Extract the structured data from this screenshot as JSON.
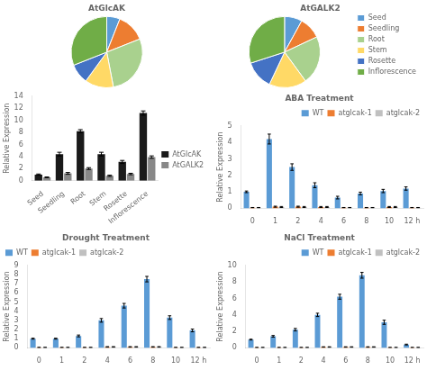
{
  "chart_data": [
    {
      "type": "pie",
      "title": "AtGlcAK",
      "categories": [
        "Seed",
        "Seedling",
        "Root",
        "Stem",
        "Rosette",
        "Inflorescence"
      ],
      "values": [
        6,
        13,
        28,
        13,
        9,
        31
      ],
      "colors": [
        "#5b9bd5",
        "#ed7d31",
        "#a9d18e",
        "#ffd966",
        "#4472c4",
        "#70ad47"
      ]
    },
    {
      "type": "pie",
      "title": "AtGALK2",
      "categories": [
        "Seed",
        "Seedling",
        "Root",
        "Stem",
        "Rosette",
        "Inflorescence"
      ],
      "values": [
        8,
        10,
        22,
        17,
        13,
        30
      ],
      "colors": [
        "#5b9bd5",
        "#ed7d31",
        "#a9d18e",
        "#ffd966",
        "#4472c4",
        "#70ad47"
      ],
      "legend": "center right"
    },
    {
      "type": "bar",
      "y_label": "Relative Expression",
      "categories": [
        "Seed",
        "Seedling",
        "Root",
        "Stem",
        "Rosette",
        "Inflorescence"
      ],
      "series": [
        {
          "name": "AtGlcAK",
          "color": "#1a1a1a",
          "values": [
            1.0,
            4.4,
            8.2,
            4.4,
            3.1,
            11.2
          ],
          "errors": [
            0.1,
            0.3,
            0.25,
            0.3,
            0.25,
            0.35
          ]
        },
        {
          "name": "AtGALK2",
          "color": "#888888",
          "values": [
            0.55,
            1.2,
            2.0,
            0.8,
            1.1,
            3.9
          ],
          "errors": [
            0.06,
            0.15,
            0.15,
            0.1,
            0.12,
            0.2
          ]
        }
      ],
      "ylim": [
        0,
        14
      ],
      "yticks": [
        0,
        2,
        4,
        6,
        8,
        10,
        12,
        14
      ],
      "grid": false,
      "legend": "center right"
    },
    {
      "type": "bar",
      "title": "ABA Treatment",
      "y_label": "Relative Expression",
      "categories": [
        "0",
        "1",
        "2",
        "4",
        "6",
        "8",
        "10",
        "12 h"
      ],
      "series": [
        {
          "name": "WT",
          "color": "#5b9bd5",
          "values": [
            1.0,
            4.2,
            2.5,
            1.4,
            0.65,
            0.9,
            1.05,
            1.2
          ],
          "errors": [
            0.05,
            0.3,
            0.2,
            0.15,
            0.08,
            0.08,
            0.1,
            0.1
          ]
        },
        {
          "name": "atglcak-1",
          "color": "#ed7d31",
          "values": [
            0.04,
            0.1,
            0.1,
            0.08,
            0.04,
            0.04,
            0.08,
            0.04
          ],
          "errors": [
            0.01,
            0.03,
            0.03,
            0.03,
            0.01,
            0.01,
            0.03,
            0.01
          ]
        },
        {
          "name": "atglcak-2",
          "color": "#c0c0c0",
          "values": [
            0.04,
            0.08,
            0.08,
            0.08,
            0.04,
            0.04,
            0.08,
            0.04
          ],
          "errors": [
            0.01,
            0.03,
            0.03,
            0.03,
            0.01,
            0.01,
            0.03,
            0.01
          ]
        }
      ],
      "ylim": [
        0,
        5
      ],
      "yticks": [
        0,
        1,
        2,
        3,
        4,
        5
      ],
      "grid": false,
      "legend": "upper right"
    },
    {
      "type": "bar",
      "title": "Drought Treatment",
      "y_label": "Relative Expression",
      "categories": [
        "0",
        "1",
        "2",
        "4",
        "6",
        "8",
        "10",
        "12 h"
      ],
      "series": [
        {
          "name": "WT",
          "color": "#5b9bd5",
          "values": [
            1.0,
            1.0,
            1.3,
            3.0,
            4.6,
            7.5,
            3.3,
            1.9
          ],
          "errors": [
            0.05,
            0.05,
            0.1,
            0.2,
            0.25,
            0.3,
            0.2,
            0.15
          ]
        },
        {
          "name": "atglcak-1",
          "color": "#ed7d31",
          "values": [
            0.04,
            0.04,
            0.04,
            0.1,
            0.1,
            0.1,
            0.04,
            0.04
          ],
          "errors": [
            0.01,
            0.01,
            0.01,
            0.03,
            0.03,
            0.03,
            0.01,
            0.01
          ]
        },
        {
          "name": "atglcak-2",
          "color": "#c0c0c0",
          "values": [
            0.04,
            0.04,
            0.04,
            0.1,
            0.1,
            0.1,
            0.04,
            0.04
          ],
          "errors": [
            0.01,
            0.01,
            0.01,
            0.03,
            0.03,
            0.03,
            0.01,
            0.01
          ]
        }
      ],
      "ylim": [
        0,
        9
      ],
      "yticks": [
        0,
        1,
        2,
        3,
        4,
        5,
        6,
        7,
        8,
        9
      ],
      "grid": false,
      "legend": "upper left"
    },
    {
      "type": "bar",
      "title": "NaCl Treatment",
      "y_label": "Relative Expression",
      "categories": [
        "0",
        "1",
        "2",
        "4",
        "6",
        "8",
        "10",
        "12 h"
      ],
      "series": [
        {
          "name": "WT",
          "color": "#5b9bd5",
          "values": [
            1.0,
            1.4,
            2.2,
            4.0,
            6.2,
            8.8,
            3.1,
            0.4
          ],
          "errors": [
            0.05,
            0.1,
            0.15,
            0.2,
            0.3,
            0.35,
            0.25,
            0.05
          ]
        },
        {
          "name": "atglcak-1",
          "color": "#ed7d31",
          "values": [
            0.04,
            0.04,
            0.04,
            0.1,
            0.1,
            0.1,
            0.04,
            0.04
          ],
          "errors": [
            0.01,
            0.01,
            0.01,
            0.03,
            0.03,
            0.03,
            0.01,
            0.01
          ]
        },
        {
          "name": "atglcak-2",
          "color": "#c0c0c0",
          "values": [
            0.04,
            0.04,
            0.04,
            0.1,
            0.1,
            0.1,
            0.04,
            0.04
          ],
          "errors": [
            0.01,
            0.01,
            0.01,
            0.03,
            0.03,
            0.03,
            0.01,
            0.01
          ]
        }
      ],
      "ylim": [
        0,
        10
      ],
      "yticks": [
        0,
        2,
        4,
        6,
        8,
        10
      ],
      "grid": false,
      "legend": "upper right"
    }
  ]
}
